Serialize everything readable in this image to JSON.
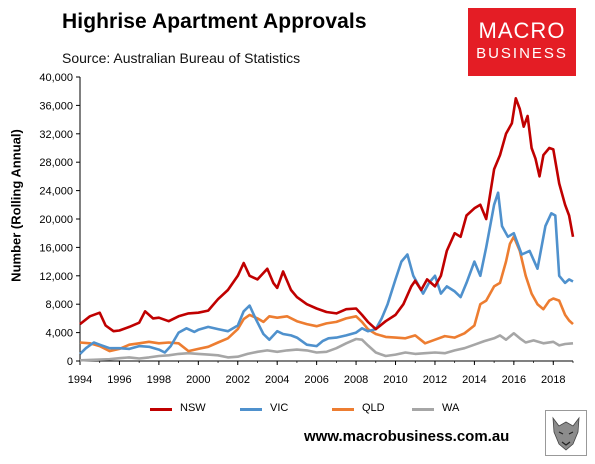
{
  "title": "Highrise Apartment Approvals",
  "subtitle": "Source: Australian Bureau of Statistics",
  "logo": {
    "line1": "MACRO",
    "line2": "BUSINESS"
  },
  "footer": "www.macrobusiness.com.au",
  "chart_data": {
    "type": "line",
    "title": "Highrise Apartment Approvals",
    "ylabel": "Number (Rolling Annual)",
    "xlim": [
      1994,
      2019
    ],
    "ylim": [
      0,
      40000
    ],
    "xticks": [
      "1994",
      "1996",
      "1998",
      "2000",
      "2002",
      "2004",
      "2006",
      "2008",
      "2010",
      "2012",
      "2014",
      "2016",
      "2018"
    ],
    "yticks": [
      "0",
      "4,000",
      "8,000",
      "12,000",
      "16,000",
      "20,000",
      "24,000",
      "28,000",
      "32,000",
      "36,000",
      "40,000"
    ],
    "legend": "bottom",
    "grid": false,
    "series": [
      {
        "name": "NSW",
        "color": "#c00000",
        "points": [
          [
            1994.0,
            5200
          ],
          [
            1994.5,
            6300
          ],
          [
            1995.0,
            6800
          ],
          [
            1995.3,
            5000
          ],
          [
            1995.7,
            4200
          ],
          [
            1996.0,
            4300
          ],
          [
            1996.5,
            4800
          ],
          [
            1997.0,
            5400
          ],
          [
            1997.3,
            7000
          ],
          [
            1997.7,
            6000
          ],
          [
            1998.0,
            6100
          ],
          [
            1998.5,
            5600
          ],
          [
            1999.0,
            6300
          ],
          [
            1999.5,
            6700
          ],
          [
            2000.0,
            6800
          ],
          [
            2000.5,
            7100
          ],
          [
            2001.0,
            8700
          ],
          [
            2001.5,
            10000
          ],
          [
            2002.0,
            12000
          ],
          [
            2002.3,
            13800
          ],
          [
            2002.6,
            12000
          ],
          [
            2003.0,
            11500
          ],
          [
            2003.5,
            13000
          ],
          [
            2003.8,
            11000
          ],
          [
            2004.0,
            10300
          ],
          [
            2004.3,
            12600
          ],
          [
            2004.7,
            10000
          ],
          [
            2005.0,
            9000
          ],
          [
            2005.5,
            8000
          ],
          [
            2006.0,
            7400
          ],
          [
            2006.5,
            6900
          ],
          [
            2007.0,
            6700
          ],
          [
            2007.5,
            7300
          ],
          [
            2008.0,
            7400
          ],
          [
            2008.3,
            6500
          ],
          [
            2008.6,
            5500
          ],
          [
            2009.0,
            4500
          ],
          [
            2009.5,
            5600
          ],
          [
            2010.0,
            6500
          ],
          [
            2010.4,
            8000
          ],
          [
            2010.8,
            10500
          ],
          [
            2011.0,
            11300
          ],
          [
            2011.3,
            10000
          ],
          [
            2011.6,
            11500
          ],
          [
            2012.0,
            10500
          ],
          [
            2012.3,
            12000
          ],
          [
            2012.6,
            15500
          ],
          [
            2013.0,
            18000
          ],
          [
            2013.3,
            17500
          ],
          [
            2013.6,
            20500
          ],
          [
            2014.0,
            21500
          ],
          [
            2014.3,
            22000
          ],
          [
            2014.6,
            20000
          ],
          [
            2015.0,
            27000
          ],
          [
            2015.3,
            29000
          ],
          [
            2015.6,
            32000
          ],
          [
            2015.9,
            33500
          ],
          [
            2016.1,
            37000
          ],
          [
            2016.3,
            35500
          ],
          [
            2016.5,
            33000
          ],
          [
            2016.7,
            34500
          ],
          [
            2016.9,
            30000
          ],
          [
            2017.1,
            28500
          ],
          [
            2017.3,
            26000
          ],
          [
            2017.5,
            29000
          ],
          [
            2017.8,
            30000
          ],
          [
            2018.0,
            29800
          ],
          [
            2018.3,
            25000
          ],
          [
            2018.6,
            22000
          ],
          [
            2018.8,
            20500
          ],
          [
            2019.0,
            17500
          ]
        ]
      },
      {
        "name": "VIC",
        "color": "#4f91cd",
        "points": [
          [
            1994.0,
            1000
          ],
          [
            1994.3,
            1800
          ],
          [
            1994.7,
            2600
          ],
          [
            1995.0,
            2300
          ],
          [
            1995.5,
            1800
          ],
          [
            1996.0,
            1800
          ],
          [
            1996.5,
            1700
          ],
          [
            1997.0,
            2100
          ],
          [
            1997.5,
            2000
          ],
          [
            1998.0,
            1600
          ],
          [
            1998.3,
            1200
          ],
          [
            1998.6,
            2100
          ],
          [
            1999.0,
            4000
          ],
          [
            1999.4,
            4600
          ],
          [
            1999.8,
            4100
          ],
          [
            2000.0,
            4400
          ],
          [
            2000.5,
            4800
          ],
          [
            2001.0,
            4500
          ],
          [
            2001.5,
            4200
          ],
          [
            2002.0,
            5000
          ],
          [
            2002.3,
            7000
          ],
          [
            2002.6,
            7800
          ],
          [
            2002.9,
            6000
          ],
          [
            2003.3,
            3800
          ],
          [
            2003.6,
            3000
          ],
          [
            2004.0,
            4200
          ],
          [
            2004.3,
            3800
          ],
          [
            2004.7,
            3600
          ],
          [
            2005.0,
            3300
          ],
          [
            2005.5,
            2300
          ],
          [
            2006.0,
            2100
          ],
          [
            2006.3,
            2800
          ],
          [
            2006.6,
            3200
          ],
          [
            2007.0,
            3300
          ],
          [
            2007.5,
            3600
          ],
          [
            2008.0,
            4000
          ],
          [
            2008.3,
            4600
          ],
          [
            2008.6,
            4200
          ],
          [
            2009.0,
            4500
          ],
          [
            2009.3,
            6000
          ],
          [
            2009.6,
            8000
          ],
          [
            2010.0,
            11500
          ],
          [
            2010.3,
            14000
          ],
          [
            2010.6,
            15000
          ],
          [
            2010.9,
            12000
          ],
          [
            2011.1,
            11000
          ],
          [
            2011.4,
            9500
          ],
          [
            2011.7,
            11000
          ],
          [
            2012.0,
            12000
          ],
          [
            2012.3,
            9500
          ],
          [
            2012.6,
            10500
          ],
          [
            2013.0,
            9800
          ],
          [
            2013.3,
            9000
          ],
          [
            2013.6,
            11000
          ],
          [
            2014.0,
            14000
          ],
          [
            2014.3,
            12000
          ],
          [
            2014.6,
            16000
          ],
          [
            2015.0,
            22000
          ],
          [
            2015.2,
            23700
          ],
          [
            2015.4,
            19000
          ],
          [
            2015.7,
            17500
          ],
          [
            2016.0,
            18000
          ],
          [
            2016.4,
            15000
          ],
          [
            2016.8,
            15500
          ],
          [
            2017.2,
            13000
          ],
          [
            2017.6,
            19000
          ],
          [
            2017.9,
            20800
          ],
          [
            2018.1,
            20500
          ],
          [
            2018.3,
            12000
          ],
          [
            2018.6,
            11000
          ],
          [
            2018.8,
            11500
          ],
          [
            2019.0,
            11200
          ]
        ]
      },
      {
        "name": "QLD",
        "color": "#ed7d31",
        "points": [
          [
            1994.0,
            2600
          ],
          [
            1994.5,
            2500
          ],
          [
            1995.0,
            2100
          ],
          [
            1995.5,
            1400
          ],
          [
            1996.0,
            1700
          ],
          [
            1996.5,
            2300
          ],
          [
            1997.0,
            2500
          ],
          [
            1997.5,
            2700
          ],
          [
            1998.0,
            2500
          ],
          [
            1998.5,
            2600
          ],
          [
            1999.0,
            2500
          ],
          [
            1999.5,
            1400
          ],
          [
            2000.0,
            1700
          ],
          [
            2000.5,
            2000
          ],
          [
            2001.0,
            2600
          ],
          [
            2001.5,
            3200
          ],
          [
            2002.0,
            4500
          ],
          [
            2002.3,
            5900
          ],
          [
            2002.6,
            6500
          ],
          [
            2003.0,
            6000
          ],
          [
            2003.3,
            5500
          ],
          [
            2003.6,
            6300
          ],
          [
            2004.0,
            6100
          ],
          [
            2004.5,
            6300
          ],
          [
            2005.0,
            5600
          ],
          [
            2005.5,
            5200
          ],
          [
            2006.0,
            4900
          ],
          [
            2006.5,
            5300
          ],
          [
            2007.0,
            5500
          ],
          [
            2007.5,
            6000
          ],
          [
            2008.0,
            6300
          ],
          [
            2008.3,
            5500
          ],
          [
            2008.6,
            4500
          ],
          [
            2009.0,
            3800
          ],
          [
            2009.5,
            3400
          ],
          [
            2010.0,
            3300
          ],
          [
            2010.5,
            3200
          ],
          [
            2011.0,
            3600
          ],
          [
            2011.5,
            2500
          ],
          [
            2012.0,
            3000
          ],
          [
            2012.5,
            3500
          ],
          [
            2013.0,
            3300
          ],
          [
            2013.5,
            3900
          ],
          [
            2014.0,
            5000
          ],
          [
            2014.3,
            8000
          ],
          [
            2014.6,
            8500
          ],
          [
            2015.0,
            10500
          ],
          [
            2015.3,
            11000
          ],
          [
            2015.6,
            14000
          ],
          [
            2015.8,
            16500
          ],
          [
            2016.0,
            17500
          ],
          [
            2016.3,
            15500
          ],
          [
            2016.6,
            12000
          ],
          [
            2016.9,
            9500
          ],
          [
            2017.2,
            8000
          ],
          [
            2017.5,
            7300
          ],
          [
            2017.8,
            8500
          ],
          [
            2018.0,
            8800
          ],
          [
            2018.3,
            8500
          ],
          [
            2018.6,
            6500
          ],
          [
            2018.8,
            5700
          ],
          [
            2019.0,
            5200
          ]
        ]
      },
      {
        "name": "WA",
        "color": "#a6a6a6",
        "points": [
          [
            1994.0,
            100
          ],
          [
            1994.5,
            150
          ],
          [
            1995.0,
            200
          ],
          [
            1995.5,
            250
          ],
          [
            1996.0,
            400
          ],
          [
            1996.5,
            500
          ],
          [
            1997.0,
            350
          ],
          [
            1997.5,
            500
          ],
          [
            1998.0,
            700
          ],
          [
            1998.5,
            800
          ],
          [
            1999.0,
            1000
          ],
          [
            1999.5,
            1100
          ],
          [
            2000.0,
            1000
          ],
          [
            2000.5,
            900
          ],
          [
            2001.0,
            800
          ],
          [
            2001.5,
            500
          ],
          [
            2002.0,
            600
          ],
          [
            2002.5,
            1000
          ],
          [
            2003.0,
            1300
          ],
          [
            2003.5,
            1500
          ],
          [
            2004.0,
            1300
          ],
          [
            2004.5,
            1500
          ],
          [
            2005.0,
            1600
          ],
          [
            2005.5,
            1500
          ],
          [
            2006.0,
            1200
          ],
          [
            2006.5,
            1300
          ],
          [
            2007.0,
            1800
          ],
          [
            2007.5,
            2500
          ],
          [
            2008.0,
            3100
          ],
          [
            2008.3,
            3000
          ],
          [
            2008.6,
            2200
          ],
          [
            2009.0,
            1200
          ],
          [
            2009.5,
            700
          ],
          [
            2010.0,
            900
          ],
          [
            2010.5,
            1200
          ],
          [
            2011.0,
            1000
          ],
          [
            2011.5,
            1100
          ],
          [
            2012.0,
            1200
          ],
          [
            2012.5,
            1100
          ],
          [
            2013.0,
            1500
          ],
          [
            2013.5,
            1800
          ],
          [
            2014.0,
            2300
          ],
          [
            2014.5,
            2800
          ],
          [
            2015.0,
            3200
          ],
          [
            2015.3,
            3600
          ],
          [
            2015.6,
            3000
          ],
          [
            2016.0,
            3900
          ],
          [
            2016.3,
            3200
          ],
          [
            2016.6,
            2600
          ],
          [
            2017.0,
            2900
          ],
          [
            2017.5,
            2500
          ],
          [
            2018.0,
            2700
          ],
          [
            2018.3,
            2200
          ],
          [
            2018.6,
            2400
          ],
          [
            2019.0,
            2500
          ]
        ]
      }
    ]
  }
}
